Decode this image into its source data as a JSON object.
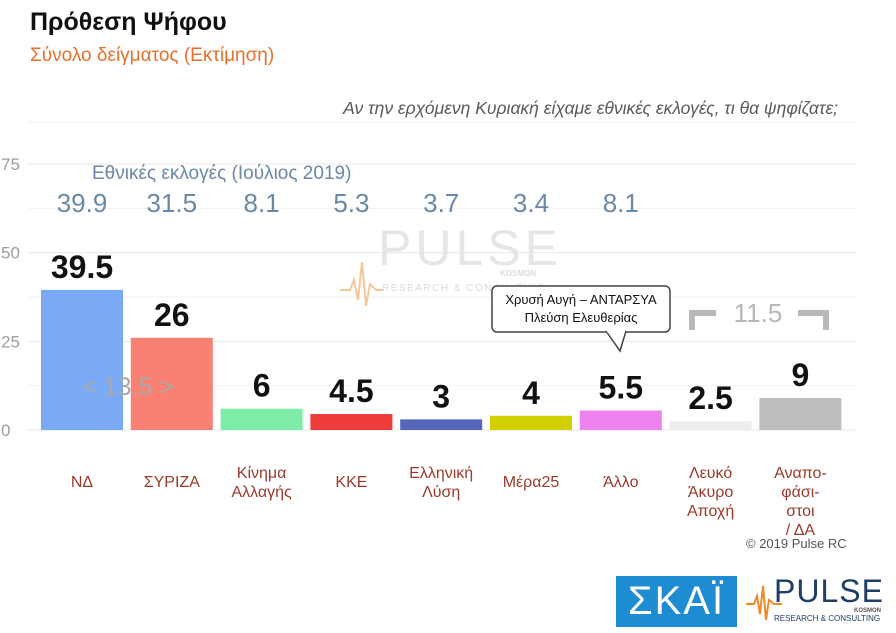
{
  "header": {
    "title": "Πρόθεση Ψήφου",
    "subtitle": "Σύνολο δείγματος   (Εκτίμηση)",
    "question": "Αν την ερχόμενη Κυριακή είχαμε εθνικές εκλογές, τι θα ψηφίζατε;"
  },
  "chart_data": {
    "type": "bar",
    "categories": [
      "ΝΔ",
      "ΣΥΡΙΖΑ",
      "Κίνημα Αλλαγής",
      "ΚΚΕ",
      "Ελληνική Λύση",
      "Μέρα25",
      "Άλλο",
      "Λευκό Άκυρο Αποχή",
      "Αναπο- φάσι- στοι / ΔΑ"
    ],
    "category_lines": [
      [
        "ΝΔ"
      ],
      [
        "ΣΥΡΙΖΑ"
      ],
      [
        "Κίνημα",
        "Αλλαγής"
      ],
      [
        "ΚΚΕ"
      ],
      [
        "Ελληνική",
        "Λύση"
      ],
      [
        "Μέρα25"
      ],
      [
        "Άλλο"
      ],
      [
        "Λευκό",
        "Άκυρο",
        "Αποχή"
      ],
      [
        "Αναπο-",
        "φάσι-",
        "στοι",
        "/ ΔΑ"
      ]
    ],
    "values": [
      39.5,
      26,
      6,
      4.5,
      3,
      4,
      5.5,
      2.5,
      9
    ],
    "value_labels": [
      "39.5",
      "26",
      "6",
      "4.5",
      "3",
      "4",
      "5.5",
      "2.5",
      "9"
    ],
    "colors": [
      "#7aaaf5",
      "#f98173",
      "#7deca6",
      "#ee3c3a",
      "#5566bb",
      "#d4d000",
      "#ee82ee",
      "#eeeeee",
      "#bdbdbd"
    ],
    "ylim": [
      0,
      75
    ],
    "yticks": [
      "0",
      "25",
      "50",
      "75"
    ],
    "grid": true,
    "previous_election": {
      "label": "Εθνικές εκλογές (Ιούλιος 2019)",
      "values": [
        "39.9",
        "31.5",
        "8.1",
        "5.3",
        "3.7",
        "3.4",
        "8.1"
      ]
    },
    "annotations": {
      "gap_label": "< 13.5 >",
      "bracket_label": "11.5",
      "callout_line1": "Χρυσή Αυγή – ΑΝΤΑΡΣΥΑ",
      "callout_line2": "Πλεύση Ελευθερίας"
    },
    "watermark": {
      "brand": "PULSE",
      "tag": "RESEARCH & CONSULTING",
      "sub": "KOSMON"
    }
  },
  "footer": {
    "copyright": "© 2019 Pulse RC",
    "skai_logo": "ΣΚΑΪ",
    "pulse_logo": "PULSE",
    "pulse_tag": "RESEARCH & CONSULTING",
    "pulse_sub": "KOSMON"
  }
}
